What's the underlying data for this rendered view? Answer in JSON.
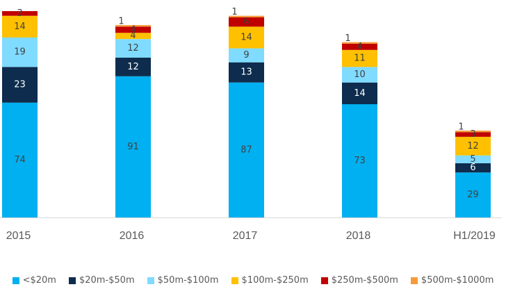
{
  "chart_data": {
    "type": "bar",
    "stacked": true,
    "title": "",
    "xlabel": "",
    "ylabel": "",
    "categories": [
      "2015",
      "2016",
      "2017",
      "2018",
      "H1/2019"
    ],
    "series": [
      {
        "name": "<$20m",
        "color": "#00B0F0",
        "label_color": "#404040",
        "values": [
          74,
          91,
          87,
          73,
          29
        ]
      },
      {
        "name": "$20m-$50m",
        "color": "#0D2C4E",
        "label_color": "#FFFFFF",
        "values": [
          23,
          12,
          13,
          14,
          6
        ]
      },
      {
        "name": "$50m-$100m",
        "color": "#7FDBFF",
        "label_color": "#404040",
        "values": [
          19,
          12,
          9,
          10,
          5
        ]
      },
      {
        "name": "$100m-$250m",
        "color": "#FFC000",
        "label_color": "#404040",
        "values": [
          14,
          4,
          14,
          11,
          12
        ]
      },
      {
        "name": "$250m-$500m",
        "color": "#C00000",
        "label_color": "#404040",
        "values": [
          3,
          4,
          6,
          4,
          3
        ]
      },
      {
        "name": "$500m-$1000m",
        "color": "#F79A3A",
        "label_color": "#404040",
        "values": [
          null,
          1,
          1,
          1,
          1
        ]
      }
    ],
    "ylim": [
      0,
      135
    ],
    "grid": false,
    "legend_position": "bottom"
  }
}
